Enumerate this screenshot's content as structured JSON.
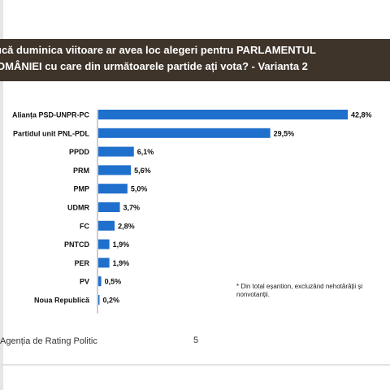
{
  "header": {
    "title_line1": "ucă duminica viitoare ar avea loc alegeri pentru PARLAMENTUL",
    "title_line2": "OMÂNIEI cu care din următoarele partide ați vota? - Varianta 2"
  },
  "chart_data": {
    "type": "bar",
    "orientation": "horizontal",
    "categories": [
      "Alianța PSD-UNPR-PC",
      "Partidul unit PNL-PDL",
      "PPDD",
      "PRM",
      "PMP",
      "UDMR",
      "FC",
      "PNTCD",
      "PER",
      "PV",
      "Noua Republică"
    ],
    "values": [
      42.8,
      29.5,
      6.1,
      5.6,
      5.0,
      3.7,
      2.8,
      1.9,
      1.9,
      0.5,
      0.2
    ],
    "value_labels": [
      "42,8%",
      "29,5%",
      "6,1%",
      "5,6%",
      "5,0%",
      "3,7%",
      "2,8%",
      "1,9%",
      "1,9%",
      "0,5%",
      "0,2%"
    ],
    "bar_color": "#1f6fcc",
    "xlim": [
      0,
      42.8
    ],
    "grid": false,
    "legend": "none"
  },
  "footnote": "* Din total eșantion, excluzând nehotărâții și nonvotanții.",
  "footer": {
    "organization": "Agenția de Rating Politic",
    "page_number": "5"
  },
  "colors": {
    "title_band": "#3f342a",
    "title_text": "#ffffff",
    "bar": "#1f6fcc",
    "axis": "#9a9a9a"
  }
}
